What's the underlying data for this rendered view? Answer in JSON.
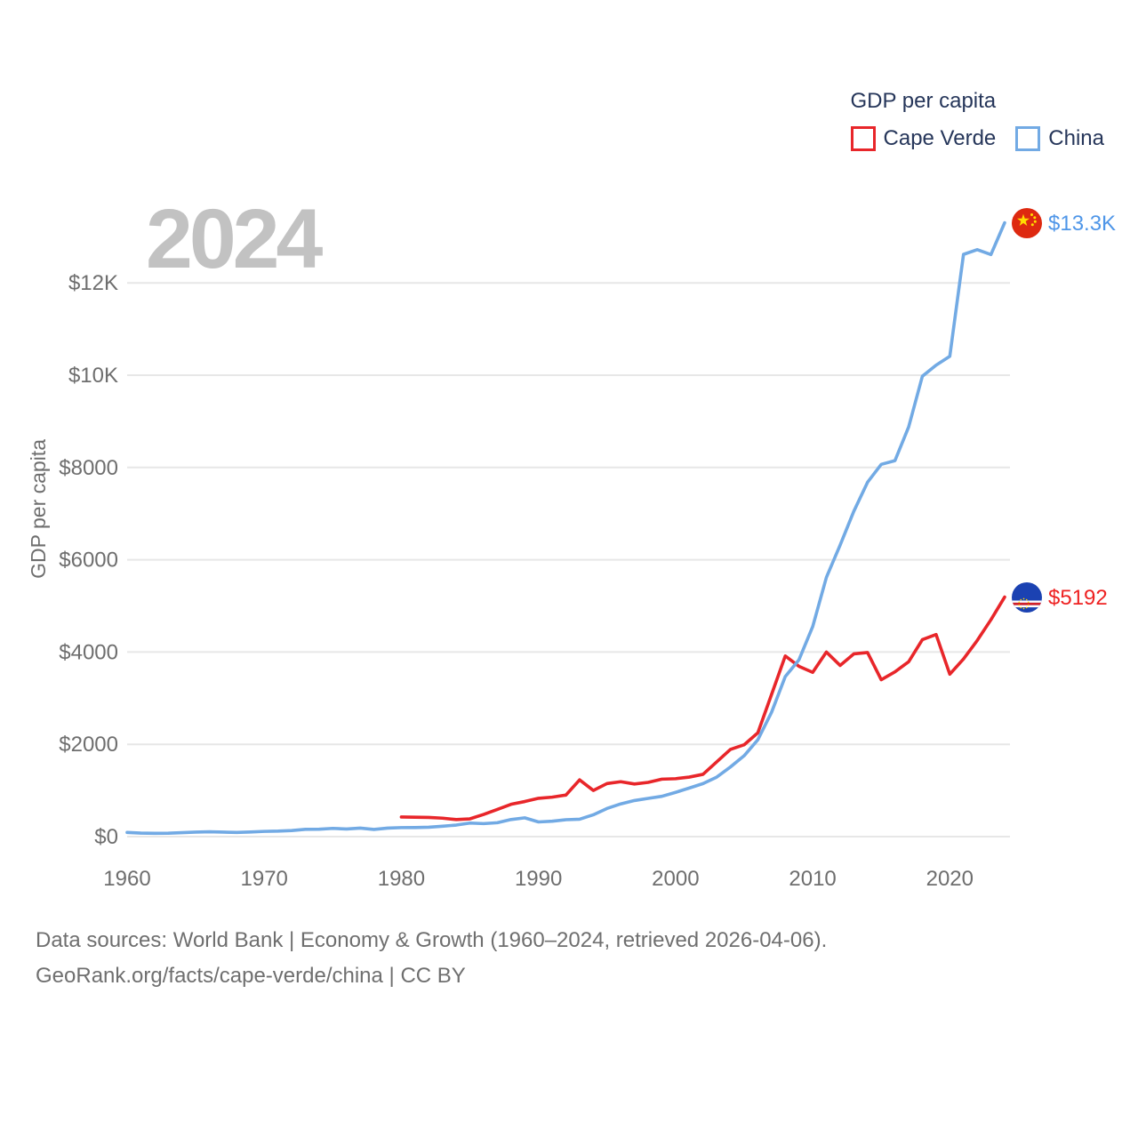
{
  "legend": {
    "title": "GDP per capita",
    "items": [
      {
        "label": "Cape Verde",
        "color": "#e8262a"
      },
      {
        "label": "China",
        "color": "#72aae4"
      }
    ]
  },
  "watermark": "2024",
  "y_axis": {
    "title": "GDP per capita",
    "ticks": [
      {
        "label": "$12K",
        "value": 12000
      },
      {
        "label": "$10K",
        "value": 10000
      },
      {
        "label": "$8000",
        "value": 8000
      },
      {
        "label": "$6000",
        "value": 6000
      },
      {
        "label": "$4000",
        "value": 4000
      },
      {
        "label": "$2000",
        "value": 2000
      },
      {
        "label": "$0",
        "value": 0
      }
    ]
  },
  "x_axis": {
    "ticks": [
      {
        "label": "1960",
        "value": 1960
      },
      {
        "label": "1970",
        "value": 1970
      },
      {
        "label": "1980",
        "value": 1980
      },
      {
        "label": "1990",
        "value": 1990
      },
      {
        "label": "2000",
        "value": 2000
      },
      {
        "label": "2010",
        "value": 2010
      },
      {
        "label": "2020",
        "value": 2020
      }
    ]
  },
  "end_labels": {
    "china": {
      "text": "$13.3K",
      "color": "#4f96e8"
    },
    "cape_verde": {
      "text": "$5192",
      "color": "#ee2222"
    }
  },
  "footer": {
    "line1": "Data sources: World Bank | Economy & Growth (1960–2024, retrieved 2026-04-06).",
    "line2": "GeoRank.org/facts/cape-verde/china | CC BY"
  },
  "icons": {
    "china_flag": "china-flag-icon",
    "cape_verde_flag": "cape-verde-flag-icon"
  },
  "chart_data": {
    "type": "line",
    "title": "GDP per capita",
    "xlabel": "",
    "ylabel": "GDP per capita",
    "xlim": [
      1960,
      2024
    ],
    "ylim": [
      0,
      13400
    ],
    "grid": true,
    "legend_position": "top-right",
    "x": [
      1960,
      1961,
      1962,
      1963,
      1964,
      1965,
      1966,
      1967,
      1968,
      1969,
      1970,
      1971,
      1972,
      1973,
      1974,
      1975,
      1976,
      1977,
      1978,
      1979,
      1980,
      1981,
      1982,
      1983,
      1984,
      1985,
      1986,
      1987,
      1988,
      1989,
      1990,
      1991,
      1992,
      1993,
      1994,
      1995,
      1996,
      1997,
      1998,
      1999,
      2000,
      2001,
      2002,
      2003,
      2004,
      2005,
      2006,
      2007,
      2008,
      2009,
      2010,
      2011,
      2012,
      2013,
      2014,
      2015,
      2016,
      2017,
      2018,
      2019,
      2020,
      2021,
      2022,
      2023,
      2024
    ],
    "series": [
      {
        "name": "Cape Verde",
        "color": "#e8262a",
        "end_label": "$5192",
        "values": [
          null,
          null,
          null,
          null,
          null,
          null,
          null,
          null,
          null,
          null,
          null,
          null,
          null,
          null,
          null,
          null,
          null,
          null,
          null,
          null,
          425,
          420,
          415,
          400,
          370,
          385,
          480,
          590,
          700,
          760,
          830,
          855,
          900,
          1230,
          1000,
          1150,
          1190,
          1140,
          1175,
          1245,
          1255,
          1290,
          1350,
          1620,
          1890,
          1990,
          2250,
          3080,
          3915,
          3690,
          3560,
          4000,
          3710,
          3960,
          3990,
          3400,
          3570,
          3790,
          4270,
          4380,
          3520,
          3850,
          4250,
          4700,
          5192
        ]
      },
      {
        "name": "China",
        "color": "#72aae4",
        "end_label": "$13.3K",
        "values": [
          90,
          76,
          71,
          74,
          85,
          98,
          104,
          97,
          91,
          100,
          113,
          119,
          132,
          157,
          160,
          178,
          165,
          185,
          156,
          184,
          195,
          197,
          203,
          225,
          250,
          294,
          282,
          301,
          370,
          407,
          318,
          333,
          366,
          377,
          473,
          610,
          709,
          782,
          829,
          873,
          959,
          1053,
          1149,
          1289,
          1509,
          1753,
          2099,
          2694,
          3468,
          3832,
          4550,
          5618,
          6317,
          7051,
          7679,
          8067,
          8148,
          8879,
          9977,
          10217,
          10409,
          12618,
          12720,
          12614,
          13303
        ]
      }
    ]
  }
}
